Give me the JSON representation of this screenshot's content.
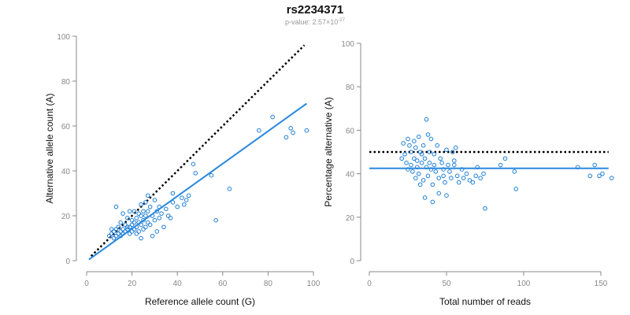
{
  "header": {
    "title": "rs2234371",
    "pvalue_label": "p-value: 2.57×10",
    "pvalue_exponent": "-27"
  },
  "colors": {
    "points": "#1f7fd6",
    "fit_line": "#2a88e0",
    "reference_line": "#000000",
    "axis": "#888888"
  },
  "chart_data": [
    {
      "type": "scatter",
      "title": "",
      "xlabel": "Reference allele count (G)",
      "ylabel": "Alternative allele count (A)",
      "xlim": [
        0,
        100
      ],
      "ylim": [
        0,
        100
      ],
      "xticks": [
        0,
        20,
        40,
        60,
        80,
        100
      ],
      "yticks": [
        0,
        20,
        40,
        60,
        80,
        100
      ],
      "reference_line": {
        "style": "dotted",
        "from": [
          2,
          2
        ],
        "to": [
          96,
          96
        ]
      },
      "fit_line": {
        "from": [
          1,
          0.5
        ],
        "to": [
          97,
          70
        ]
      },
      "points": [
        [
          10,
          11
        ],
        [
          11,
          12
        ],
        [
          11,
          14
        ],
        [
          12,
          10
        ],
        [
          12,
          13
        ],
        [
          13,
          11
        ],
        [
          13,
          14
        ],
        [
          13,
          24
        ],
        [
          14,
          12
        ],
        [
          14,
          15
        ],
        [
          15,
          11
        ],
        [
          15,
          13
        ],
        [
          15,
          17
        ],
        [
          16,
          12
        ],
        [
          16,
          14
        ],
        [
          16,
          21
        ],
        [
          17,
          13
        ],
        [
          17,
          16
        ],
        [
          18,
          14
        ],
        [
          18,
          15
        ],
        [
          18,
          19
        ],
        [
          19,
          12
        ],
        [
          19,
          15
        ],
        [
          19,
          22
        ],
        [
          20,
          13
        ],
        [
          20,
          16
        ],
        [
          20,
          18
        ],
        [
          21,
          14
        ],
        [
          21,
          17
        ],
        [
          21,
          22
        ],
        [
          22,
          12
        ],
        [
          22,
          15
        ],
        [
          22,
          19
        ],
        [
          23,
          13
        ],
        [
          23,
          17
        ],
        [
          23,
          21
        ],
        [
          24,
          10
        ],
        [
          24,
          16
        ],
        [
          24,
          20
        ],
        [
          24,
          25
        ],
        [
          25,
          14
        ],
        [
          25,
          18
        ],
        [
          25,
          22
        ],
        [
          26,
          15
        ],
        [
          26,
          20
        ],
        [
          26,
          26
        ],
        [
          27,
          17
        ],
        [
          27,
          22
        ],
        [
          27,
          29
        ],
        [
          28,
          16
        ],
        [
          28,
          24
        ],
        [
          29,
          11
        ],
        [
          29,
          20
        ],
        [
          30,
          18
        ],
        [
          30,
          27
        ],
        [
          31,
          13
        ],
        [
          31,
          22
        ],
        [
          32,
          19
        ],
        [
          32,
          24
        ],
        [
          33,
          21
        ],
        [
          34,
          15
        ],
        [
          35,
          23
        ],
        [
          36,
          20
        ],
        [
          37,
          19
        ],
        [
          38,
          26
        ],
        [
          38,
          30
        ],
        [
          40,
          24
        ],
        [
          42,
          28
        ],
        [
          43,
          25
        ],
        [
          44,
          27
        ],
        [
          45,
          29
        ],
        [
          47,
          43
        ],
        [
          48,
          39
        ],
        [
          55,
          38
        ],
        [
          57,
          18
        ],
        [
          63,
          32
        ],
        [
          76,
          58
        ],
        [
          82,
          64
        ],
        [
          88,
          55
        ],
        [
          90,
          59
        ],
        [
          91,
          57
        ],
        [
          97,
          58
        ]
      ]
    },
    {
      "type": "scatter",
      "title": "",
      "xlabel": "Total number of reads",
      "ylabel": "Percentage alternative (A)",
      "xlim": [
        0,
        150
      ],
      "ylim": [
        0,
        100
      ],
      "xticks": [
        0,
        50,
        100,
        150
      ],
      "yticks": [
        0,
        20,
        40,
        60,
        80,
        100
      ],
      "reference_line": {
        "style": "dotted",
        "y": 50,
        "from_x": 0,
        "to_x": 155
      },
      "fit_line": {
        "y": 42.5,
        "from_x": 0,
        "to_x": 155
      },
      "points": [
        [
          21,
          47
        ],
        [
          22,
          54
        ],
        [
          23,
          49
        ],
        [
          24,
          45
        ],
        [
          25,
          56
        ],
        [
          25,
          42
        ],
        [
          26,
          53
        ],
        [
          27,
          50
        ],
        [
          27,
          44
        ],
        [
          28,
          41
        ],
        [
          29,
          55
        ],
        [
          29,
          47
        ],
        [
          30,
          52
        ],
        [
          30,
          38
        ],
        [
          31,
          46
        ],
        [
          31,
          43
        ],
        [
          32,
          57
        ],
        [
          32,
          40
        ],
        [
          33,
          50
        ],
        [
          33,
          35
        ],
        [
          34,
          49
        ],
        [
          34,
          45
        ],
        [
          35,
          53
        ],
        [
          35,
          37
        ],
        [
          36,
          47
        ],
        [
          36,
          29
        ],
        [
          37,
          65
        ],
        [
          37,
          43
        ],
        [
          38,
          58
        ],
        [
          38,
          39
        ],
        [
          39,
          50
        ],
        [
          39,
          45
        ],
        [
          40,
          56
        ],
        [
          40,
          42
        ],
        [
          41,
          35
        ],
        [
          41,
          27
        ],
        [
          42,
          49
        ],
        [
          42,
          44
        ],
        [
          43,
          41
        ],
        [
          44,
          53
        ],
        [
          45,
          38
        ],
        [
          45,
          31
        ],
        [
          46,
          47
        ],
        [
          47,
          45
        ],
        [
          48,
          42
        ],
        [
          48,
          39
        ],
        [
          49,
          36
        ],
        [
          50,
          51
        ],
        [
          50,
          30
        ],
        [
          51,
          44
        ],
        [
          52,
          41
        ],
        [
          53,
          38
        ],
        [
          54,
          50
        ],
        [
          55,
          46
        ],
        [
          55,
          44
        ],
        [
          56,
          52
        ],
        [
          57,
          39
        ],
        [
          58,
          36
        ],
        [
          60,
          42
        ],
        [
          61,
          38
        ],
        [
          63,
          40
        ],
        [
          65,
          37
        ],
        [
          67,
          36
        ],
        [
          69,
          39
        ],
        [
          70,
          43
        ],
        [
          72,
          38
        ],
        [
          74,
          40
        ],
        [
          75,
          24
        ],
        [
          85,
          44
        ],
        [
          88,
          47
        ],
        [
          94,
          41
        ],
        [
          95,
          33
        ],
        [
          135,
          43
        ],
        [
          143,
          39
        ],
        [
          146,
          44
        ],
        [
          149,
          39
        ],
        [
          151,
          40
        ],
        [
          157,
          38
        ]
      ]
    }
  ]
}
